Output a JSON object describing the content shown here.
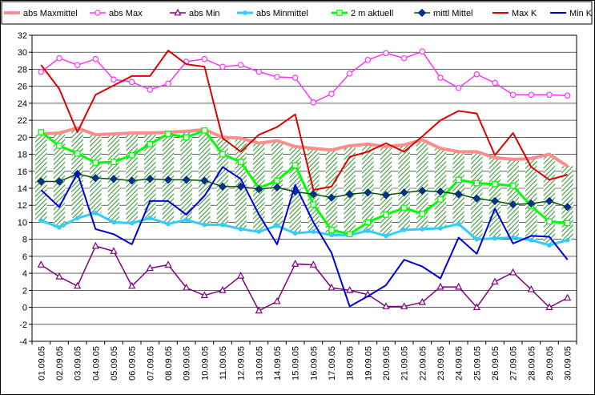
{
  "chart_data": {
    "type": "line",
    "title": "",
    "xlabel": "",
    "ylabel": "",
    "ylim": [
      -4,
      32
    ],
    "ytick_step": 2,
    "grid": "horizontal",
    "legend_position": "top",
    "categories": [
      "01.09.05",
      "02.09.05",
      "03.09.05",
      "04.09.05",
      "05.09.05",
      "06.09.05",
      "07.09.05",
      "08.09.05",
      "09.09.05",
      "10.09.05",
      "11.09.05",
      "12.09.05",
      "13.09.05",
      "14.09.05",
      "15.09.05",
      "16.09.05",
      "17.09.05",
      "18.09.05",
      "19.09.05",
      "20.09.05",
      "21.09.05",
      "22.09.05",
      "23.09.05",
      "24.09.05",
      "25.09.05",
      "26.09.05",
      "27.09.05",
      "28.09.05",
      "29.09.05",
      "30.09.05"
    ],
    "yticks": [
      "-4",
      "-2",
      "0",
      "2",
      "4",
      "6",
      "8",
      "10",
      "12",
      "14",
      "16",
      "18",
      "20",
      "22",
      "24",
      "26",
      "28",
      "30",
      "32"
    ],
    "band": {
      "description_series": [
        "abs Maxmittel",
        "abs Minmittel"
      ],
      "fill_color": "#3a9a3a"
    },
    "series": [
      {
        "name": "abs Maxmittel",
        "color": "#ff8c8c",
        "marker": "star",
        "width": 4,
        "values": [
          20.4,
          20.5,
          21.1,
          20.3,
          20.4,
          20.5,
          20.5,
          20.6,
          20.7,
          20.9,
          20.0,
          19.9,
          19.3,
          19.6,
          18.9,
          18.7,
          18.5,
          19.0,
          19.2,
          18.9,
          19.1,
          19.7,
          18.7,
          18.3,
          18.3,
          17.6,
          17.4,
          17.5,
          18.0,
          16.6
        ]
      },
      {
        "name": "abs Max",
        "color": "#ff33ff",
        "marker": "circle",
        "width": 1.5,
        "values": [
          27.7,
          29.3,
          28.5,
          29.2,
          26.8,
          26.5,
          25.6,
          26.3,
          28.9,
          29.2,
          28.3,
          28.5,
          27.7,
          27.1,
          27.0,
          24.1,
          25.1,
          27.5,
          29.1,
          29.9,
          29.3,
          30.1,
          27.0,
          25.8,
          27.4,
          26.4,
          25.0,
          25.0,
          25.0,
          24.9
        ]
      },
      {
        "name": "abs Min",
        "color": "#800080",
        "marker": "triangle",
        "width": 1.5,
        "values": [
          5.0,
          3.6,
          2.5,
          7.2,
          6.6,
          2.5,
          4.6,
          5.0,
          2.3,
          1.4,
          2.0,
          3.7,
          -0.4,
          0.7,
          5.1,
          5.0,
          2.3,
          2.0,
          1.5,
          0.1,
          0.1,
          0.6,
          2.4,
          2.4,
          0.0,
          3.0,
          4.1,
          2.1,
          0.0,
          1.1
        ]
      },
      {
        "name": "abs Minmittel",
        "color": "#33ccff",
        "marker": "circle-small",
        "width": 3,
        "values": [
          10.2,
          9.4,
          10.5,
          11.1,
          10.0,
          9.9,
          10.5,
          9.8,
          10.3,
          9.7,
          9.7,
          9.2,
          8.9,
          9.6,
          8.7,
          8.9,
          8.5,
          8.5,
          9.0,
          8.4,
          9.1,
          9.2,
          9.3,
          9.8,
          8.0,
          8.1,
          8.2,
          7.9,
          7.3,
          7.9
        ]
      },
      {
        "name": "2 m aktuell",
        "color": "#00ff00",
        "marker": "square-open",
        "width": 3,
        "values": [
          20.6,
          19.0,
          18.1,
          17.0,
          17.1,
          17.9,
          19.2,
          20.4,
          20.0,
          20.8,
          18.0,
          17.1,
          14.0,
          14.9,
          16.7,
          12.1,
          9.1,
          8.6,
          10.0,
          10.9,
          11.7,
          11.0,
          12.7,
          15.0,
          14.6,
          14.5,
          14.3,
          11.9,
          10.1,
          9.9
        ]
      },
      {
        "name": "mittl Mittel",
        "color": "#005500",
        "markercolor": "#003399",
        "marker": "diamond",
        "width": 1.5,
        "values": [
          14.8,
          14.8,
          15.7,
          15.2,
          15.1,
          14.9,
          15.1,
          15.0,
          15.0,
          14.9,
          14.2,
          14.2,
          13.9,
          14.1,
          13.6,
          13.3,
          12.9,
          13.3,
          13.5,
          13.2,
          13.5,
          13.7,
          13.6,
          13.3,
          12.8,
          12.5,
          12.1,
          12.2,
          12.5,
          11.8
        ]
      },
      {
        "name": "Max K",
        "color": "#e00000",
        "marker": "none",
        "width": 2,
        "values": [
          28.5,
          25.7,
          20.6,
          25.0,
          26.1,
          27.2,
          27.2,
          30.2,
          28.6,
          28.3,
          19.9,
          18.3,
          20.3,
          21.2,
          22.7,
          13.8,
          14.2,
          17.7,
          18.3,
          19.3,
          18.3,
          20.1,
          22.0,
          23.1,
          22.8,
          17.9,
          20.5,
          16.5,
          15.0,
          15.6
        ]
      },
      {
        "name": "Min K",
        "color": "#0000dd",
        "marker": "none",
        "width": 2,
        "values": [
          13.8,
          11.8,
          15.8,
          9.2,
          8.6,
          7.4,
          12.5,
          12.5,
          10.9,
          13.1,
          16.5,
          15.1,
          10.9,
          7.4,
          14.4,
          10.0,
          6.4,
          0.1,
          1.3,
          2.6,
          5.6,
          4.8,
          3.4,
          8.2,
          6.3,
          11.6,
          7.5,
          8.4,
          8.3,
          5.6
        ]
      }
    ]
  }
}
